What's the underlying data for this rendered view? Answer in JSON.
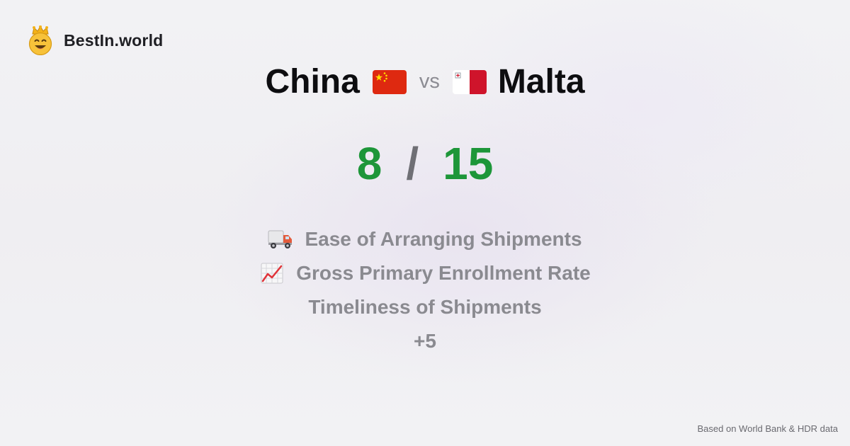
{
  "brand": {
    "name": "BestIn.world",
    "logo_icon": "crown-smiley-icon"
  },
  "comparison": {
    "country_a": "China",
    "country_a_flag": "china-flag-icon",
    "vs_label": "vs",
    "country_b": "Malta",
    "country_b_flag": "malta-flag-icon"
  },
  "score": {
    "a": "8",
    "separator": "/",
    "b": "15",
    "color": "#1d9639"
  },
  "metrics": [
    {
      "icon": "delivery-truck-icon",
      "label": "Ease of Arranging Shipments"
    },
    {
      "icon": "chart-increasing-icon",
      "label": "Gross Primary Enrollment Rate"
    },
    {
      "icon": "",
      "label": "Timeliness of Shipments"
    },
    {
      "icon": "",
      "label": "+5"
    }
  ],
  "footer": {
    "source": "Based on World Bank & HDR data"
  }
}
